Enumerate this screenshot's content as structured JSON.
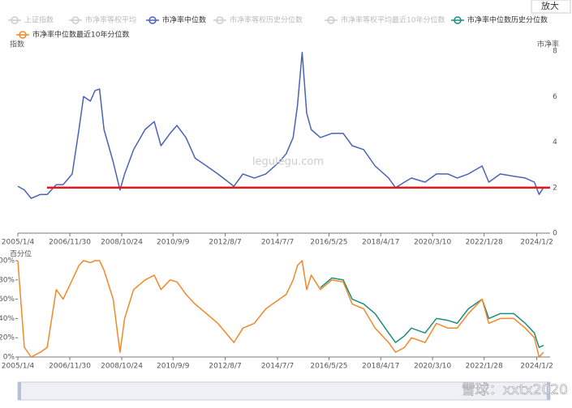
{
  "legend": [
    {
      "name": "上证指数",
      "color": "#cccccc",
      "selected": false
    },
    {
      "name": "市净率等权平均",
      "color": "#cccccc",
      "selected": false
    },
    {
      "name": "市净率中位数",
      "color": "#4a63b5",
      "selected": true
    },
    {
      "name": "市净率等权历史分位数",
      "color": "#cccccc",
      "selected": false
    },
    {
      "name": "市净率等权平均最近10年分位数",
      "color": "#cccccc",
      "selected": false
    },
    {
      "name": "市净率中位数历史分位数",
      "color": "#1e8c7a",
      "selected": true
    },
    {
      "name": "市净率中位数最近10年分位数",
      "color": "#f0892a",
      "selected": true
    }
  ],
  "zoom_button": "放大",
  "watermark": "legulegu.com",
  "footer_watermark": "雪球：xxtx2020",
  "chart_data": [
    {
      "type": "line",
      "y_label": "指数",
      "y2_label": "市净率",
      "x": [
        "2005/1/4",
        "2005/4/1",
        "2005/7/1",
        "2005/11/1",
        "2006/2/1",
        "2006/6/1",
        "2006/9/1",
        "2007/1/1",
        "2007/4/1",
        "2007/6/1",
        "2007/9/1",
        "2007/11/1",
        "2008/1/1",
        "2008/3/1",
        "2008/7/1",
        "2008/10/1",
        "2008/12/1",
        "2009/4/1",
        "2009/9/1",
        "2010/1/1",
        "2010/4/1",
        "2010/8/1",
        "2010/11/1",
        "2011/3/1",
        "2011/7/1",
        "2011/12/1",
        "2012/5/1",
        "2012/12/1",
        "2013/4/1",
        "2013/9/1",
        "2014/2/1",
        "2014/8/1",
        "2014/11/1",
        "2015/2/1",
        "2015/4/1",
        "2015/6/1",
        "2015/8/1",
        "2015/10/1",
        "2016/2/1",
        "2016/7/1",
        "2016/12/1",
        "2017/4/1",
        "2017/9/1",
        "2018/2/1",
        "2018/8/1",
        "2018/11/1",
        "2019/3/1",
        "2019/6/1",
        "2019/12/1",
        "2020/5/1",
        "2020/10/1",
        "2021/2/1",
        "2021/7/1",
        "2022/1/1",
        "2022/4/1",
        "2022/9/1",
        "2023/3/1",
        "2023/8/1",
        "2023/12/1",
        "2024/2/1",
        "2024/4/1"
      ],
      "series": [
        {
          "legend_index": 2,
          "color": "#4a63b5",
          "axis": "y2",
          "values": [
            2.06,
            1.9,
            1.53,
            1.7,
            1.7,
            2.13,
            2.13,
            2.6,
            4.55,
            6.0,
            5.8,
            6.26,
            6.33,
            4.55,
            3.13,
            1.89,
            2.6,
            3.67,
            4.55,
            4.9,
            3.84,
            4.38,
            4.73,
            4.2,
            3.3,
            2.95,
            2.6,
            2.06,
            2.6,
            2.42,
            2.6,
            3.13,
            3.49,
            4.2,
            5.62,
            7.94,
            5.27,
            4.55,
            4.2,
            4.38,
            4.38,
            3.84,
            3.67,
            2.95,
            2.42,
            2.0,
            2.24,
            2.42,
            2.24,
            2.6,
            2.6,
            2.42,
            2.6,
            2.95,
            2.24,
            2.6,
            2.5,
            2.42,
            2.24,
            1.7,
            2.0
          ]
        }
      ],
      "xlim": [
        "2005/1/4",
        "2024/6/28"
      ],
      "xticks": [
        "2005/1/4",
        "2006/11/30",
        "2008/10/24",
        "2010/9/9",
        "2012/8/7",
        "2014/7/7",
        "2016/5/25",
        "2018/4/17",
        "2020/3/10",
        "2022/1/28",
        "2024/1/2"
      ],
      "y2lim": [
        0,
        8
      ],
      "y2ticks": [
        0,
        2,
        4,
        6,
        8
      ],
      "reference_line": {
        "value": 2,
        "color": "#e8151b"
      }
    },
    {
      "type": "line",
      "y_label": "百分位",
      "x": [
        "2005/1/4",
        "2005/4/1",
        "2005/7/1",
        "2005/11/1",
        "2006/2/1",
        "2006/6/1",
        "2006/9/1",
        "2007/1/1",
        "2007/4/1",
        "2007/6/1",
        "2007/9/1",
        "2007/11/1",
        "2008/1/1",
        "2008/3/1",
        "2008/7/1",
        "2008/10/1",
        "2008/12/1",
        "2009/4/1",
        "2009/9/1",
        "2010/1/1",
        "2010/4/1",
        "2010/8/1",
        "2010/11/1",
        "2011/3/1",
        "2011/7/1",
        "2011/12/1",
        "2012/5/1",
        "2012/12/1",
        "2013/4/1",
        "2013/9/1",
        "2014/2/1",
        "2014/8/1",
        "2014/11/1",
        "2015/2/1",
        "2015/4/1",
        "2015/6/1",
        "2015/8/1",
        "2015/10/1",
        "2016/2/1",
        "2016/7/1",
        "2016/12/1",
        "2017/4/1",
        "2017/9/1",
        "2018/2/1",
        "2018/8/1",
        "2018/11/1",
        "2019/3/1",
        "2019/6/1",
        "2019/12/1",
        "2020/5/1",
        "2020/10/1",
        "2021/2/1",
        "2021/7/1",
        "2022/1/1",
        "2022/4/1",
        "2022/9/1",
        "2023/3/1",
        "2023/8/1",
        "2023/12/1",
        "2024/2/1",
        "2024/4/1"
      ],
      "series": [
        {
          "legend_index": 5,
          "color": "#1e8c7a",
          "values": [
            null,
            null,
            null,
            null,
            null,
            null,
            null,
            null,
            null,
            null,
            null,
            null,
            null,
            null,
            null,
            null,
            null,
            null,
            null,
            null,
            null,
            null,
            null,
            null,
            null,
            null,
            null,
            null,
            null,
            null,
            null,
            null,
            null,
            null,
            null,
            null,
            null,
            null,
            72,
            82,
            80,
            60,
            55,
            45,
            25,
            15,
            22,
            30,
            25,
            40,
            38,
            35,
            50,
            60,
            40,
            45,
            45,
            35,
            25,
            10,
            12
          ]
        },
        {
          "legend_index": 6,
          "color": "#f0892a",
          "values": [
            100,
            10,
            0,
            5,
            10,
            70,
            60,
            80,
            95,
            100,
            98,
            100,
            100,
            90,
            60,
            5,
            40,
            70,
            80,
            85,
            70,
            80,
            78,
            65,
            55,
            45,
            35,
            15,
            30,
            35,
            50,
            60,
            65,
            80,
            95,
            100,
            70,
            85,
            70,
            80,
            78,
            55,
            50,
            30,
            15,
            5,
            10,
            20,
            15,
            35,
            30,
            30,
            45,
            60,
            35,
            40,
            40,
            30,
            20,
            0,
            5
          ]
        }
      ],
      "xlim": [
        "2005/1/4",
        "2024/6/28"
      ],
      "xticks": [
        "2005/1/4",
        "2006/11/30",
        "2008/10/24",
        "2010/9/9",
        "2012/8/7",
        "2014/7/7",
        "2016/5/25",
        "2018/4/17",
        "2020/3/10",
        "2022/1/28",
        "2024/1/2"
      ],
      "ylim": [
        0,
        100
      ],
      "yticks": [
        {
          "value": 0,
          "label": "0%"
        },
        {
          "value": 20,
          "label": "20%"
        },
        {
          "value": 40,
          "label": "40%"
        },
        {
          "value": 60,
          "label": "60%"
        },
        {
          "value": 80,
          "label": "80%"
        },
        {
          "value": 100,
          "label": "100%"
        }
      ]
    }
  ]
}
